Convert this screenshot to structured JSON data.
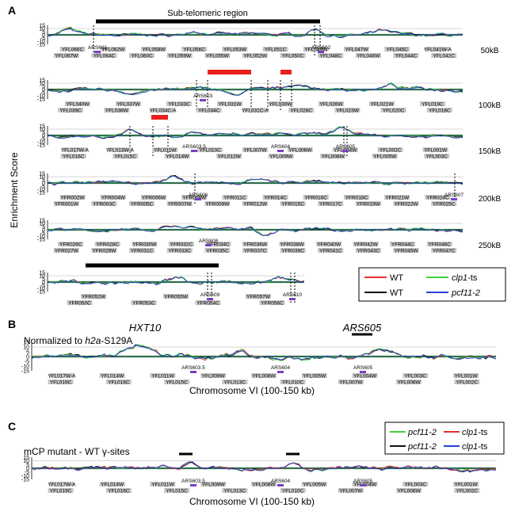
{
  "figure": {
    "panel_labels": [
      "A",
      "B",
      "C"
    ],
    "ylabel": "Enrichment Score",
    "subtelomeric_label": "Sub-telomeric region",
    "yticks": [
      "15",
      "10",
      "5",
      "0",
      "-5",
      "-10",
      "-15"
    ]
  },
  "chart_data": [
    {
      "type": "line",
      "panel": "A",
      "ylabel": "Enrichment Score",
      "ylim": [
        -15,
        15
      ],
      "series": [
        {
          "name": "WT",
          "color": "#e8302a"
        },
        {
          "name": "WT",
          "color": "#111111"
        },
        {
          "name": "clp1-ts",
          "color": "#3bd33b"
        },
        {
          "name": "pcf11-2",
          "color": "#2a3fd6"
        }
      ],
      "rows": [
        {
          "scale_label": "50kB",
          "genes_top": [
            "YFL066C",
            "YFL062W",
            "YFL058W",
            "YFL056C",
            "YFL053W",
            "YFL051C",
            "YFL049W",
            "YFL047W",
            "YFL045C",
            "YFL041W-A"
          ],
          "genes_bottom": [
            "YFL067W",
            "YFL064C",
            "YFL060C",
            "YFL059W",
            "YFL055W",
            "YFL052W",
            "YFL050C",
            "YFL048C",
            "YFL046W",
            "YFL044C",
            "YFL042C"
          ],
          "ars": [
            "ARS601",
            "ARS602"
          ]
        },
        {
          "scale_label": "100kB",
          "genes_top": [
            "YFL040W",
            "YFL037W",
            "YFL033C",
            "YFL031W",
            "YFL030W",
            "YFL026W",
            "YFL021W",
            "YFL019C"
          ],
          "genes_bottom": [
            "YFL039C",
            "YFL036W",
            "YFL034C-A",
            "YFL034C",
            "YFL031C-A",
            "YFL028C",
            "YFL023W",
            "YFL020C",
            "YFL018C"
          ],
          "ars": [
            "ARS603"
          ]
        },
        {
          "scale_label": "150kB",
          "genes_top": [
            "YFL017W-A",
            "YFL013W-A",
            "YFL011W",
            "YFL010C",
            "YFL007W",
            "YFL006W",
            "YFL004W",
            "YFL002C",
            "YFL001W"
          ],
          "genes_bottom": [
            "YFL016C",
            "YFL015C",
            "YFL014W",
            "YFL012W",
            "YFL009W",
            "YFL008W",
            "YFL005W",
            "YFL003C"
          ],
          "ars": [
            "ARS603.5",
            "ARS604",
            "ARS605"
          ]
        },
        {
          "scale_label": "200kB",
          "genes_top": [
            "YFR002W",
            "YFR004W",
            "YFR006W",
            "YFR008W",
            "YFR011C",
            "YFR014C",
            "YFR016C",
            "YFR018C",
            "YFR021W",
            "YFR024C"
          ],
          "genes_bottom": [
            "YFR001W",
            "YFR003C",
            "YFR005C",
            "YFR007W",
            "YFR009W",
            "YFR012W",
            "YFR015C",
            "YFR017C",
            "YFR019W",
            "YFR022W",
            "YFR025C"
          ],
          "ars": [
            "ARS606",
            "ARS607"
          ]
        },
        {
          "scale_label": "250kB",
          "genes_top": [
            "YFR026C",
            "YFR028C",
            "YFR030W",
            "YFR032C",
            "YFR034C",
            "YFR036W",
            "YFR038W",
            "YFR040W",
            "YFR042W",
            "YFR044C",
            "YFR046C"
          ],
          "genes_bottom": [
            "YFR027W",
            "YFR029W",
            "YFR031C",
            "YFR033C",
            "YFR035C",
            "YFR037C",
            "YFR039C",
            "YFR041C",
            "YFR043C",
            "YFR045W",
            "YFR047C"
          ],
          "ars": [
            "ARS608"
          ]
        },
        {
          "scale_label": "",
          "genes_top": [
            "YFR052W",
            "YFR055W",
            "YFR057W"
          ],
          "genes_bottom": [
            "YFR050C",
            "YFR053C",
            "YFR054C",
            "YFR056C"
          ],
          "ars": [
            "ARS609",
            "ARS610"
          ]
        }
      ]
    },
    {
      "type": "line",
      "panel": "B",
      "annotation": "Normalized to h2a-S129A",
      "xlabel": "Chromosome VI (100-150 kb)",
      "ylim": [
        -15,
        15
      ],
      "highlights": [
        "HXT10",
        "ARS605"
      ],
      "series": [
        {
          "name": "WT",
          "color": "#e8302a"
        },
        {
          "name": "WT",
          "color": "#111111"
        },
        {
          "name": "clp1-ts",
          "color": "#3bd33b"
        },
        {
          "name": "pcf11-2",
          "color": "#2a3fd6"
        }
      ],
      "genes_top": [
        "YFL017W-A",
        "YFL014W",
        "YFL011W",
        "YFL009W",
        "YFL008W",
        "YFL005W",
        "YFL004W",
        "YFL003C",
        "YFL001W"
      ],
      "genes_bottom": [
        "YFL019C",
        "YFL016C",
        "YFL015C",
        "YFL013C",
        "YFL010C",
        "YFL007W",
        "YFL006W",
        "YFL002C"
      ],
      "ars": [
        "ARS603.5",
        "ARS604",
        "ARS605"
      ]
    },
    {
      "type": "line",
      "panel": "C",
      "annotation": "mCP mutant - WT γ-sites",
      "xlabel": "Chromosome VI (100-150 kb)",
      "ylim": [
        -15,
        15
      ],
      "series": [
        {
          "name": "pcf11-2",
          "color": "#3bd33b"
        },
        {
          "name": "pcf11-2",
          "color": "#111111"
        },
        {
          "name": "clp1-ts",
          "color": "#e8302a"
        },
        {
          "name": "clp1-ts",
          "color": "#2a3fd6"
        }
      ],
      "genes_top": [
        "YFL017W-A",
        "YFL014W",
        "YFL011W",
        "YFL009W",
        "YFL008W",
        "YFL005W",
        "YFL004W",
        "YFL003C",
        "YFL001W"
      ],
      "genes_bottom": [
        "YFL019C",
        "YFL016C",
        "YFL015C",
        "YFL013C",
        "YFL010C",
        "YFL007W",
        "YFL006W",
        "YFL002C"
      ],
      "ars": [
        "ARS603.5",
        "ARS604",
        "ARS605"
      ]
    }
  ],
  "legends": {
    "A": [
      {
        "name": "WT",
        "color": "#e8302a"
      },
      {
        "name": "clp1-ts",
        "color": "#3bd33b"
      },
      {
        "name": "WT",
        "color": "#111111"
      },
      {
        "name": "pcf11-2",
        "color": "#2a3fd6"
      }
    ],
    "C": [
      {
        "name": "pcf11-2",
        "color": "#3bd33b"
      },
      {
        "name": "clp1-ts",
        "color": "#e8302a"
      },
      {
        "name": "pcf11-2",
        "color": "#111111"
      },
      {
        "name": "clp1-ts",
        "color": "#2a3fd6"
      }
    ]
  },
  "panel_b": {
    "prefix": "Normalized to ",
    "gene": "h2a",
    "suffix": "-S129A",
    "hxt10": "HXT10",
    "ars605": "ARS605",
    "xlabel": "Chromosome VI (100-150 kb)"
  },
  "panel_c": {
    "annotation": "mCP mutant - WT γ-sites",
    "xlabel": "Chromosome VI (100-150 kb)"
  },
  "colors": {
    "red": "#e8302a",
    "black": "#111111",
    "green": "#3bd33b",
    "blue": "#2a3fd6",
    "highlight_red": "#e8201c",
    "baseline": "#2e6f4e",
    "gene_box": "#c8c8c8"
  }
}
